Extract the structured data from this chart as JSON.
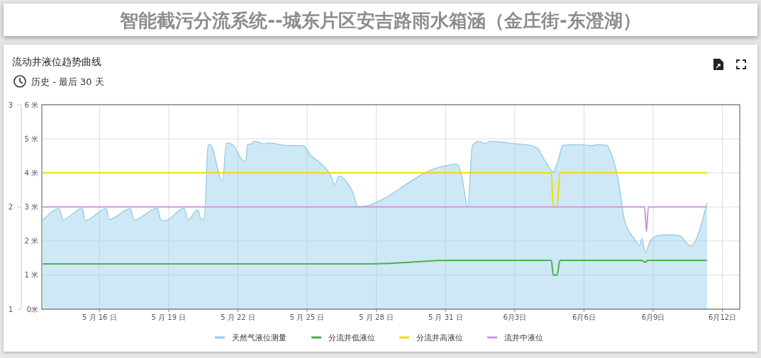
{
  "chart_data": {
    "type": "line",
    "title": "智能截污分流系统--城东片区安吉路雨水箱涵（金庄街-东澄湖）",
    "subtitle": "流动井液位趋势曲线",
    "annotations": [
      "历史 - 最后 30 天"
    ],
    "xlim": [
      "--05-13T12:00",
      "--06-12T18:00"
    ],
    "xticks": [
      {
        "value": "--05-16",
        "label": "5 月 16 日"
      },
      {
        "value": "--05-19",
        "label": "5 月 19 日"
      },
      {
        "value": "--05-22",
        "label": "5 月 22 日"
      },
      {
        "value": "--05-25",
        "label": "5 月 25 日"
      },
      {
        "value": "--05-28",
        "label": "5 月 28 日"
      },
      {
        "value": "--05-31",
        "label": "5 月 31 日"
      },
      {
        "value": "--06-03",
        "label": "6月3日"
      },
      {
        "value": "--06-06",
        "label": "6月6日"
      },
      {
        "value": "--06-09",
        "label": "6月9日"
      },
      {
        "value": "--06-12",
        "label": "6月12日"
      }
    ],
    "ylim": [
      0,
      6
    ],
    "yticks": [
      {
        "value": 0,
        "label": "0米"
      },
      {
        "value": 1,
        "label": "1 米"
      },
      {
        "value": 2,
        "label": "2 米"
      },
      {
        "value": 3,
        "label": "3 米"
      },
      {
        "value": 4,
        "label": "4 米"
      },
      {
        "value": 5,
        "label": "5 米"
      },
      {
        "value": 6,
        "label": "6 米"
      }
    ],
    "y2lim": [
      1,
      3
    ],
    "y2ticks": [
      1,
      2,
      3
    ],
    "grid": true,
    "legend": "bottom",
    "marker": "none",
    "line_style": "solid",
    "series": [
      {
        "name": "天然气液位测量",
        "type": "area",
        "color": "#92cbe8",
        "x": [
          "--05-13T13:00",
          "--05-14T06:00",
          "--05-14T10:00",
          "--05-15T06:00",
          "--05-15T09:00",
          "--05-16T07:00",
          "--05-16T10:00",
          "--05-17T08:00",
          "--05-17T12:00",
          "--05-18T12:00",
          "--05-18T16:00",
          "--05-18T20:00",
          "--05-19T16:00",
          "--05-19T20:00",
          "--05-20T06:00",
          "--05-20T10:00",
          "--05-20T13:00",
          "--05-20T17:00",
          "--05-20T19:00",
          "--05-21T08:00",
          "--05-21T12:00",
          "--05-21T19:00",
          "--05-22T04:00",
          "--05-22T08:00",
          "--05-22T10:00",
          "--05-22T14:00",
          "--05-22T17:00",
          "--05-23T03:00",
          "--05-23T08:00",
          "--05-24T01:00",
          "--05-24T20:00",
          "--05-25T04:00",
          "--05-25T12:00",
          "--05-26T00:00",
          "--05-26T05:00",
          "--05-26T09:00",
          "--05-26T17:00",
          "--05-26T23:00",
          "--05-27T05:00",
          "--05-27T15:00",
          "--05-28T11:00",
          "--05-29T11:00",
          "--05-30T06:00",
          "--05-31T00:00",
          "--05-31T12:00",
          "--05-31T17:00",
          "--05-31T23:00",
          "--06-01T04:00",
          "--06-01T11:00",
          "--06-01T17:00",
          "--06-01T23:00",
          "--06-02T10:00",
          "--06-02T23:00",
          "--06-03T16:00",
          "--06-04T00:00",
          "--06-04T08:00",
          "--06-04T16:00",
          "--06-04T21:00",
          "--06-05T02:00",
          "--06-05T17:00",
          "--06-06T10:00",
          "--06-06T12:00",
          "--06-07T00:00",
          "--06-07T02:00",
          "--06-07T11:00",
          "--06-07T18:00",
          "--06-08T04:00",
          "--06-08T10:00",
          "--06-08T12:00",
          "--06-08T16:00",
          "--06-08T21:00",
          "--06-09T05:00",
          "--06-09T17:00",
          "--06-10T03:00",
          "--06-10T15:00",
          "--06-11T08:00"
        ],
        "values": [
          2.6,
          2.95,
          2.63,
          2.96,
          2.6,
          2.95,
          2.63,
          2.95,
          2.62,
          2.96,
          2.62,
          2.6,
          2.96,
          2.62,
          2.92,
          2.63,
          2.65,
          4.81,
          4.83,
          3.75,
          4.88,
          4.81,
          4.4,
          4.33,
          4.83,
          4.85,
          4.93,
          4.85,
          4.88,
          4.81,
          4.8,
          4.5,
          4.33,
          3.95,
          3.66,
          3.91,
          3.74,
          3.46,
          3.01,
          3.04,
          3.29,
          3.74,
          4.05,
          4.21,
          4.26,
          3.88,
          3.01,
          4.81,
          4.92,
          4.86,
          4.93,
          4.9,
          4.86,
          4.81,
          4.71,
          4.33,
          4.03,
          4.36,
          4.81,
          4.83,
          4.8,
          4.83,
          4.81,
          4.71,
          3.88,
          2.63,
          2.08,
          1.87,
          2.07,
          1.67,
          2.01,
          2.16,
          2.18,
          2.16,
          1.86,
          3.12
        ]
      },
      {
        "name": "分流井低液位",
        "color": "#4caf50",
        "x": [
          "--05-13T13:00",
          "--05-27T20:00",
          "--05-29T12:00",
          "--05-31T02:00",
          "--06-04T14:00",
          "--06-04T16:00",
          "--06-04T20:00",
          "--06-04T23:00",
          "--06-08T12:00",
          "--06-08T14:00",
          "--06-08T16:00",
          "--06-08T18:00",
          "--06-11T08:00"
        ],
        "values": [
          1.33,
          1.33,
          1.38,
          1.43,
          1.43,
          1.0,
          1.0,
          1.43,
          1.43,
          1.4,
          1.38,
          1.43,
          1.43
        ]
      },
      {
        "name": "分流井高液位",
        "color": "#f2dc00",
        "x": [
          "--05-13T13:00",
          "--06-04T14:00",
          "--06-04T16:00",
          "--06-04T20:00",
          "--06-04T23:00",
          "--06-11T08:00"
        ],
        "values": [
          4,
          4,
          3,
          3,
          4,
          4
        ]
      },
      {
        "name": "流井中液位",
        "color": "#cc99dd",
        "x": [
          "--05-13T13:00",
          "--06-08T15:00",
          "--06-08T17:00",
          "--06-08T19:00",
          "--06-11T08:00"
        ],
        "values": [
          3,
          3,
          2.28,
          3,
          3
        ]
      }
    ]
  }
}
